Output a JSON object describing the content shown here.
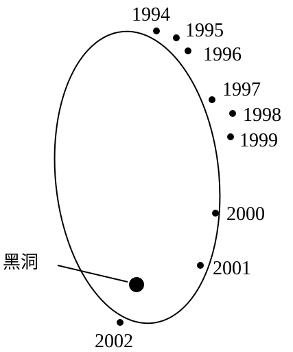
{
  "diagram": {
    "type": "stellar-orbit-around-black-hole",
    "black_hole_label": "黑洞",
    "points": [
      {
        "year": "1994"
      },
      {
        "year": "1995"
      },
      {
        "year": "1996"
      },
      {
        "year": "1997"
      },
      {
        "year": "1998"
      },
      {
        "year": "1999"
      },
      {
        "year": "2000"
      },
      {
        "year": "2001"
      },
      {
        "year": "2002"
      }
    ],
    "colors": {
      "ink": "#000000",
      "background": "#ffffff"
    }
  }
}
